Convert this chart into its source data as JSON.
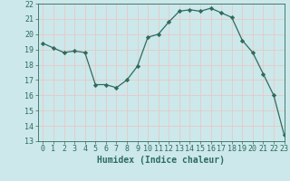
{
  "x": [
    0,
    1,
    2,
    3,
    4,
    5,
    6,
    7,
    8,
    9,
    10,
    11,
    12,
    13,
    14,
    15,
    16,
    17,
    18,
    19,
    20,
    21,
    22,
    23
  ],
  "y": [
    19.4,
    19.1,
    18.8,
    18.9,
    18.8,
    16.7,
    16.7,
    16.5,
    17.0,
    17.9,
    19.8,
    20.0,
    20.8,
    21.5,
    21.6,
    21.5,
    21.7,
    21.4,
    21.1,
    19.6,
    18.8,
    17.4,
    16.0,
    13.4
  ],
  "line_color": "#2e6b5e",
  "marker": "D",
  "marker_size": 2.2,
  "background_color": "#cce8ea",
  "grid_color": "#e8c8c8",
  "xlabel": "Humidex (Indice chaleur)",
  "ylim": [
    13,
    22
  ],
  "xlim": [
    -0.5,
    23
  ],
  "yticks": [
    13,
    14,
    15,
    16,
    17,
    18,
    19,
    20,
    21,
    22
  ],
  "xticks": [
    0,
    1,
    2,
    3,
    4,
    5,
    6,
    7,
    8,
    9,
    10,
    11,
    12,
    13,
    14,
    15,
    16,
    17,
    18,
    19,
    20,
    21,
    22,
    23
  ],
  "tick_color": "#2e6b5e",
  "label_fontsize": 7.0,
  "tick_fontsize": 6.0
}
